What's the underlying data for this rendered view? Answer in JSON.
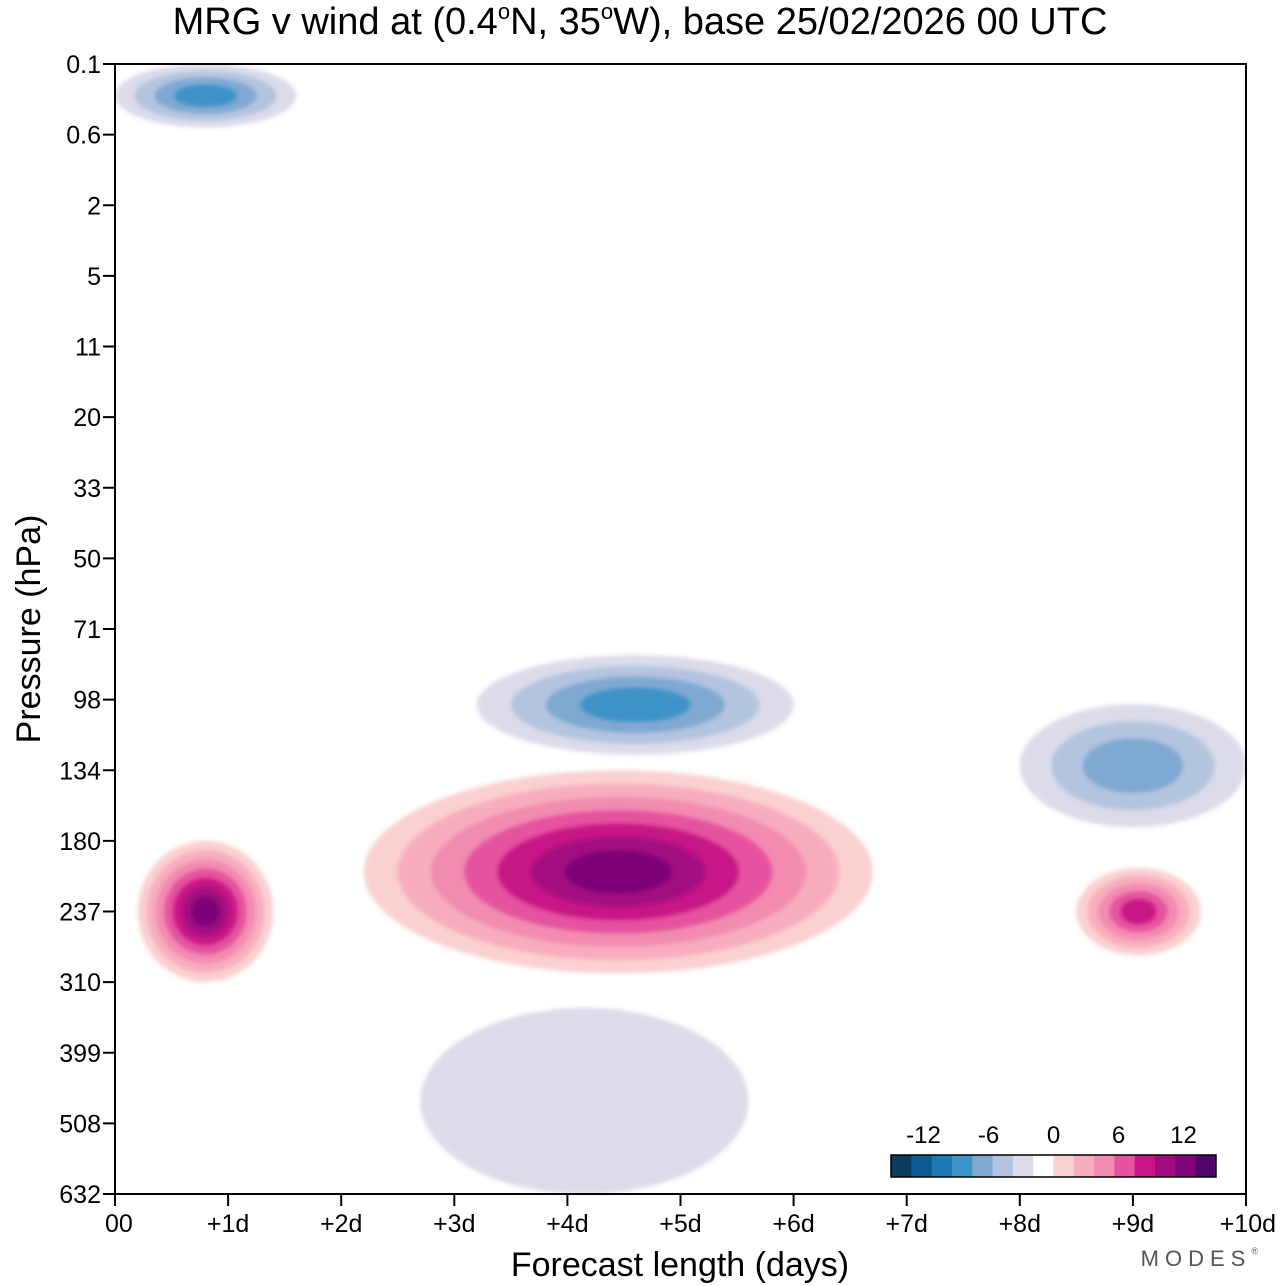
{
  "title": {
    "prefix": "MRG v wind at (0.4",
    "deg1": "o",
    "mid": "N, 35",
    "deg2": "o",
    "suffix": "W),  base 25/02/2026  00 UTC"
  },
  "brand": {
    "name": "MODES",
    "mark": "®"
  },
  "chart_data": {
    "type": "heatmap",
    "title": "MRG v wind at (0.4°N, 35°W),  base 25/02/2026  00 UTC",
    "xlabel": "Forecast length (days)",
    "ylabel": "Pressure (hPa)",
    "x_ticks": [
      "00",
      "+1d",
      "+2d",
      "+3d",
      "+4d",
      "+5d",
      "+6d",
      "+7d",
      "+8d",
      "+9d",
      "+10d"
    ],
    "y_ticks": [
      "0.1",
      "0.6",
      "2",
      "5",
      "11",
      "20",
      "33",
      "50",
      "71",
      "98",
      "134",
      "180",
      "237",
      "310",
      "399",
      "508",
      "632"
    ],
    "xlim": [
      0,
      10
    ],
    "y_scale": "pressure levels (top = 0.1 hPa, bottom = 632 hPa)",
    "colorbar": {
      "labels": [
        "-12",
        "-6",
        "0",
        "6",
        "12"
      ],
      "label_values": [
        -12,
        -6,
        0,
        6,
        12
      ],
      "levels": [
        -15,
        -13,
        -11,
        -9,
        -7,
        -5,
        -3,
        -1,
        1,
        3,
        5,
        7,
        9,
        11,
        13,
        15
      ],
      "colors": [
        "#0d3b5c",
        "#0a5a8f",
        "#1d78b4",
        "#3d93c7",
        "#7fa9d2",
        "#b3c4df",
        "#dbdbea",
        "#ffffff",
        "#fbd0d0",
        "#f7adbe",
        "#f28bb0",
        "#e5529e",
        "#c71585",
        "#a20a80",
        "#7e0478",
        "#4f036b"
      ]
    },
    "features": [
      {
        "kind": "max",
        "pressure_range_hPa": [
          180,
          310
        ],
        "days": [
          0.2,
          1.4
        ],
        "peak_value": 15
      },
      {
        "kind": "max",
        "pressure_range_hPa": [
          134,
          300
        ],
        "days": [
          2.2,
          6.7
        ],
        "peak_value": 15
      },
      {
        "kind": "max",
        "pressure_range_hPa": [
          200,
          280
        ],
        "days": [
          8.5,
          9.6
        ],
        "peak_value": 11
      },
      {
        "kind": "min",
        "pressure_range_hPa": [
          80,
          125
        ],
        "days": [
          3.2,
          6.0
        ],
        "peak_value": -9
      },
      {
        "kind": "min",
        "pressure_range_hPa": [
          100,
          170
        ],
        "days": [
          8.0,
          10.0
        ],
        "peak_value": -7
      },
      {
        "kind": "min",
        "pressure_range_hPa": [
          340,
          632
        ],
        "days": [
          2.7,
          5.6
        ],
        "peak_value": -3
      },
      {
        "kind": "min",
        "pressure_range_hPa": [
          0.1,
          0.5
        ],
        "days": [
          0.0,
          1.6
        ],
        "peak_value": -9
      }
    ]
  }
}
